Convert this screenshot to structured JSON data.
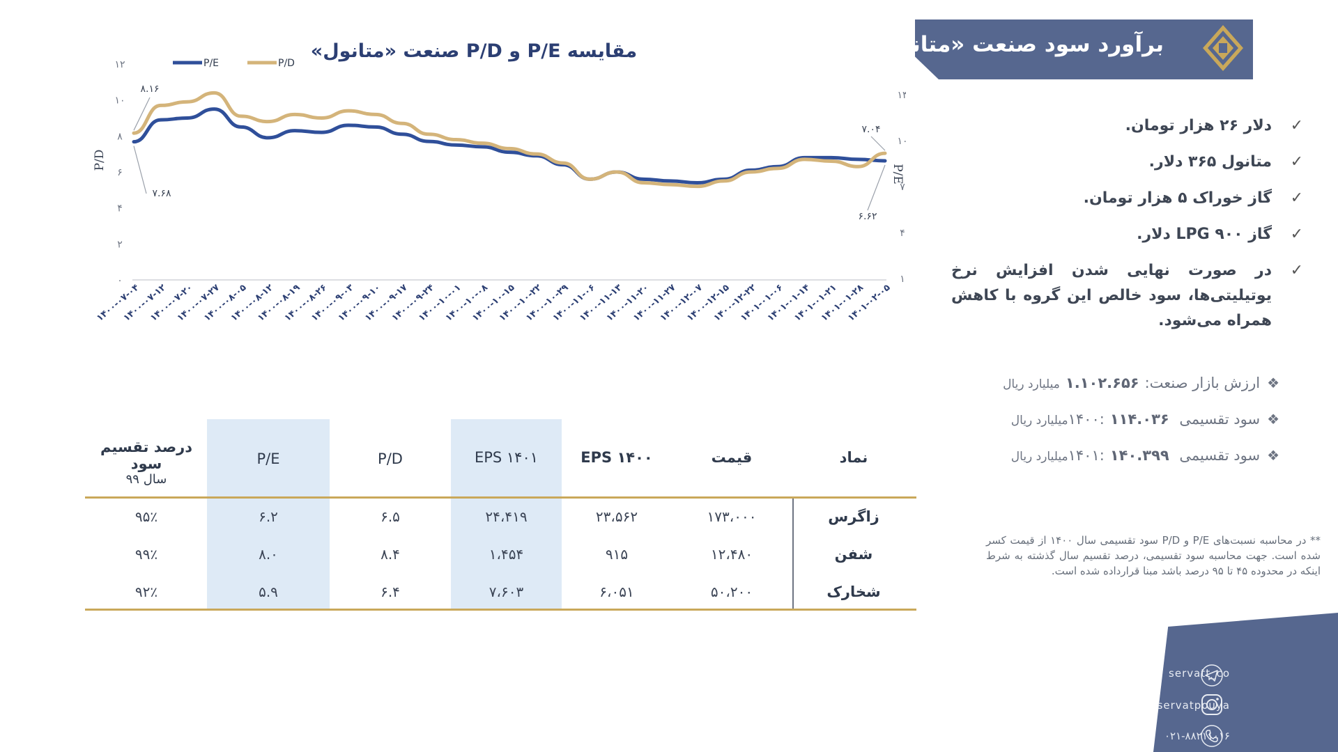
{
  "header": {
    "title": "برآورد سود صنعت «متانول»",
    "accent_color": "#56678f",
    "logo_icon": "diamond-emblem-icon"
  },
  "chart_data": {
    "type": "line",
    "title": "مقایسه P/E و P/D صنعت «متانول»",
    "ylabel_left": "P/D",
    "ylabel_right": "P/E",
    "ylim_left": [
      0,
      12
    ],
    "yticks_left": [
      "۰",
      "۲",
      "۴",
      "۶",
      "۸",
      "۱۰",
      "۱۲"
    ],
    "ylim_right": [
      1,
      13
    ],
    "yticks_right": [
      "۱",
      "۴",
      "۷",
      "۱۰",
      "۱۳"
    ],
    "categories": [
      "۱۴۰۰-۰۷-۰۴",
      "۱۴۰۰-۰۷-۱۲",
      "۱۴۰۰-۰۷-۲۰",
      "۱۴۰۰-۰۷-۲۷",
      "۱۴۰۰-۰۸-۰۵",
      "۱۴۰۰-۰۸-۱۲",
      "۱۴۰۰-۰۸-۱۹",
      "۱۴۰۰-۰۸-۲۶",
      "۱۴۰۰-۰۹-۰۳",
      "۱۴۰۰-۰۹-۱۰",
      "۱۴۰۰-۰۹-۱۷",
      "۱۴۰۰-۰۹-۲۴",
      "۱۴۰۰-۱۰-۰۱",
      "۱۴۰۰-۱۰-۰۸",
      "۱۴۰۰-۱۰-۱۵",
      "۱۴۰۰-۱۰-۲۲",
      "۱۴۰۰-۱۰-۲۹",
      "۱۴۰۰-۱۱-۰۶",
      "۱۴۰۰-۱۱-۱۳",
      "۱۴۰۰-۱۱-۲۰",
      "۱۴۰۰-۱۱-۲۷",
      "۱۴۰۰-۱۲-۰۷",
      "۱۴۰۰-۱۲-۱۵",
      "۱۴۰۰-۱۲-۲۲",
      "۱۴۰۱-۰۱-۰۶",
      "۱۴۰۱-۰۱-۱۴",
      "۱۴۰۱-۰۱-۲۱",
      "۱۴۰۱-۰۱-۲۸",
      "۱۴۰۱-۰۲-۰۵"
    ],
    "series": [
      {
        "name": "P/E",
        "color": "#2f4f9a",
        "start_label": "۷.۶۸",
        "end_label": "۶.۶۲",
        "values": [
          7.68,
          8.9,
          9.0,
          9.5,
          8.5,
          7.9,
          8.3,
          8.2,
          8.6,
          8.5,
          8.1,
          7.7,
          7.5,
          7.4,
          7.1,
          6.9,
          6.4,
          5.6,
          6.0,
          5.6,
          5.5,
          5.4,
          5.6,
          6.1,
          6.3,
          6.8,
          6.8,
          6.7,
          6.62
        ]
      },
      {
        "name": "P/D",
        "color": "#d4b47a",
        "start_label": "۸.۱۶",
        "end_label": "۷.۰۴",
        "values": [
          8.16,
          9.7,
          9.9,
          10.4,
          9.1,
          8.8,
          9.2,
          9.0,
          9.4,
          9.2,
          8.7,
          8.1,
          7.8,
          7.6,
          7.3,
          7.0,
          6.5,
          5.6,
          6.0,
          5.4,
          5.3,
          5.2,
          5.5,
          6.0,
          6.2,
          6.7,
          6.6,
          6.3,
          7.04
        ]
      }
    ]
  },
  "bullets": [
    "دلار ۲۶ هزار تومان.",
    "متانول ۳۶۵ دلار.",
    "گاز خوراک ۵ هزار تومان.",
    "گاز LPG ۹۰۰ دلار.",
    "در صورت نهایی شدن افزایش نرخ یوتیلیتی‌ها، سود خالص این گروه با کاهش همراه می‌شود."
  ],
  "stats": [
    {
      "label": "ارزش بازار صنعت:",
      "value": "۱.۱۰۲.۶۵۶",
      "unit": "میلیارد ریال"
    },
    {
      "label": "سود تقسیمی ۱۴۰۰:",
      "value": "۱۱۴.۰۳۶",
      "unit": "میلیارد ریال"
    },
    {
      "label": "سود تقسیمی ۱۴۰۱:",
      "value": "۱۴۰.۳۹۹",
      "unit": "میلیارد ریال"
    }
  ],
  "footnote": "** در محاسبه نسبت‌های P/E و P/D  سود تقسیمی سال ۱۴۰۰ از قیمت کسر شده است. جهت محاسبه سود تقسیمی، درصد تقسیم سال گذشته به شرط اینکه در محدوده ۴۵ تا ۹۵ درصد باشد مبنا قرارداده شده است.",
  "table": {
    "headers": {
      "symbol": "نماد",
      "price": "قیمت",
      "eps1400": "EPS ۱۴۰۰",
      "eps1401": "EPS ۱۴۰۱",
      "pd": "P/D",
      "pe": "P/E",
      "div_line1": "درصد تقسیم سود",
      "div_line2": "سال ۹۹"
    },
    "rows": [
      {
        "symbol": "زاگرس",
        "price": "۱۷۳،۰۰۰",
        "eps1400": "۲۳،۵۶۲",
        "eps1401": "۲۴،۴۱۹",
        "pd": "۶.۵",
        "pe": "۶.۲",
        "div": "۹۵٪"
      },
      {
        "symbol": "شفن",
        "price": "۱۲،۴۸۰",
        "eps1400": "۹۱۵",
        "eps1401": "۱،۴۵۴",
        "pd": "۸.۴",
        "pe": "۸.۰",
        "div": "۹۹٪"
      },
      {
        "symbol": "شخارک",
        "price": "۵۰،۲۰۰",
        "eps1400": "۶،۰۵۱",
        "eps1401": "۷،۶۰۳",
        "pd": "۶.۴",
        "pe": "۵.۹",
        "div": "۹۲٪"
      }
    ]
  },
  "footer": {
    "telegram": "servatt_co",
    "instagram": "servatpouya",
    "phone": "۰۲۱-۸۸۲۱۱۰۱۶",
    "icons": [
      "telegram-icon",
      "instagram-icon",
      "phone-icon"
    ]
  }
}
